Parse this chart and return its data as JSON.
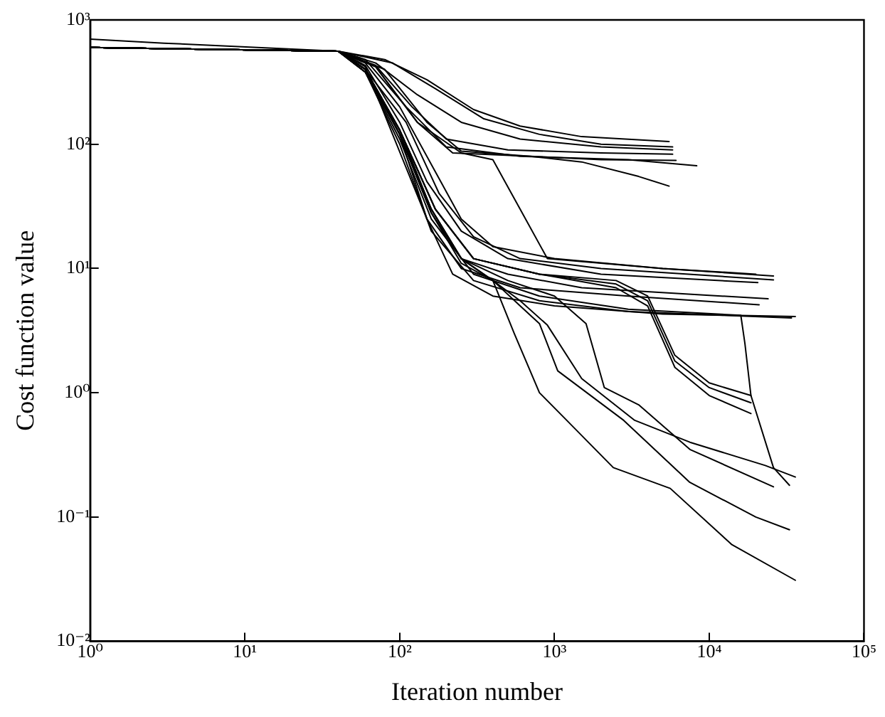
{
  "chart_data": {
    "type": "line",
    "xlabel": "Iteration number",
    "ylabel": "Cost function value",
    "log": "xy",
    "grid": false,
    "legend": false,
    "marker": "none",
    "line_style": "solid",
    "xlim": [
      1,
      100000
    ],
    "ylim": [
      0.01,
      1000
    ],
    "xticks": [
      {
        "value": 1,
        "label": "10⁰"
      },
      {
        "value": 10,
        "label": "10¹"
      },
      {
        "value": 100,
        "label": "10²"
      },
      {
        "value": 1000,
        "label": "10³"
      },
      {
        "value": 10000,
        "label": "10⁴"
      },
      {
        "value": 100000,
        "label": "10⁵"
      }
    ],
    "yticks": [
      {
        "value": 0.01,
        "label": "10⁻²"
      },
      {
        "value": 0.1,
        "label": "10⁻¹"
      },
      {
        "value": 1,
        "label": "10⁰"
      },
      {
        "value": 10,
        "label": "10¹"
      },
      {
        "value": 100,
        "label": "10²"
      },
      {
        "value": 1000,
        "label": "10³"
      }
    ],
    "series": [
      {
        "color": "#000000",
        "x": [
          1,
          40,
          80,
          150,
          300,
          600,
          1500,
          5500
        ],
        "values": [
          600,
          560,
          480,
          330,
          190,
          140,
          115,
          105
        ]
      },
      {
        "color": "#000000",
        "x": [
          1,
          40,
          90,
          170,
          350,
          800,
          2000,
          5800
        ],
        "values": [
          600,
          560,
          450,
          280,
          160,
          120,
          100,
          95
        ]
      },
      {
        "color": "#000000",
        "x": [
          1,
          40,
          70,
          130,
          250,
          600,
          2000,
          5800
        ],
        "values": [
          600,
          560,
          450,
          250,
          150,
          110,
          95,
          90
        ]
      },
      {
        "color": "#000000",
        "x": [
          1,
          40,
          70,
          120,
          200,
          500,
          2000,
          5800
        ],
        "values": [
          600,
          560,
          430,
          200,
          110,
          90,
          85,
          83
        ]
      },
      {
        "color": "#000000",
        "x": [
          1,
          40,
          60,
          110,
          200,
          600,
          3000,
          8300
        ],
        "values": [
          600,
          560,
          480,
          200,
          95,
          80,
          75,
          67
        ]
      },
      {
        "color": "#000000",
        "x": [
          1,
          40,
          70,
          130,
          220,
          700,
          2000,
          6100
        ],
        "values": [
          600,
          560,
          420,
          150,
          85,
          80,
          75,
          74
        ]
      },
      {
        "color": "#000000",
        "x": [
          1,
          3,
          40,
          80,
          150,
          250,
          700,
          1500,
          3500,
          5500
        ],
        "values": [
          700,
          650,
          560,
          400,
          150,
          88,
          80,
          72,
          55,
          46
        ]
      },
      {
        "color": "#000000",
        "x": [
          1,
          40,
          60,
          100,
          170,
          250,
          400,
          1000,
          5000,
          26000
        ],
        "values": [
          600,
          560,
          450,
          200,
          60,
          25,
          15,
          12,
          10,
          8.7
        ]
      },
      {
        "color": "#000000",
        "x": [
          1,
          40,
          60,
          110,
          180,
          300,
          600,
          2000,
          26000
        ],
        "values": [
          600,
          560,
          400,
          150,
          40,
          18,
          12,
          10,
          8.1
        ]
      },
      {
        "color": "#000000",
        "x": [
          1,
          40,
          60,
          100,
          150,
          250,
          500,
          2000,
          20600
        ],
        "values": [
          600,
          560,
          430,
          150,
          50,
          20,
          12,
          9,
          7.7
        ]
      },
      {
        "color": "#000000",
        "x": [
          1,
          40,
          60,
          100,
          160,
          250,
          500,
          1500,
          24000
        ],
        "values": [
          600,
          560,
          400,
          130,
          30,
          12,
          9,
          7,
          5.7
        ]
      },
      {
        "color": "#000000",
        "x": [
          1,
          40,
          60,
          90,
          150,
          250,
          600,
          3000,
          21000
        ],
        "values": [
          600,
          560,
          420,
          120,
          25,
          10,
          7,
          6,
          5.1
        ]
      },
      {
        "color": "#000000",
        "x": [
          1,
          40,
          60,
          100,
          150,
          220,
          400,
          1000,
          5000,
          36000
        ],
        "values": [
          600,
          560,
          380,
          120,
          25,
          9,
          6,
          5,
          4.3,
          4.1
        ]
      },
      {
        "color": "#000000",
        "x": [
          1,
          40,
          60,
          100,
          160,
          300,
          800,
          3000,
          34000
        ],
        "values": [
          600,
          560,
          380,
          100,
          20,
          8,
          5.5,
          4.5,
          4.0
        ]
      },
      {
        "color": "#000000",
        "x": [
          1,
          40,
          70,
          130,
          250,
          400,
          600,
          900,
          5000,
          20000
        ],
        "values": [
          600,
          560,
          420,
          150,
          85,
          75,
          30,
          12,
          10,
          9
        ]
      },
      {
        "color": "#000000",
        "x": [
          1,
          40,
          60,
          100,
          160,
          250,
          400,
          550,
          800,
          1200,
          2400,
          5600,
          14000,
          36000
        ],
        "values": [
          600,
          560,
          400,
          120,
          30,
          12,
          8,
          3,
          1,
          0.6,
          0.25,
          0.17,
          0.06,
          0.031
        ]
      },
      {
        "color": "#000000",
        "x": [
          1,
          40,
          60,
          100,
          160,
          250,
          400,
          600,
          800,
          1050,
          2800,
          7500,
          20000,
          33000
        ],
        "values": [
          600,
          560,
          400,
          120,
          30,
          12,
          8,
          5,
          3.6,
          1.5,
          0.6,
          0.19,
          0.1,
          0.079
        ]
      },
      {
        "color": "#000000",
        "x": [
          1,
          40,
          60,
          100,
          160,
          250,
          400,
          600,
          900,
          1500,
          3300,
          7500,
          23000,
          36000
        ],
        "values": [
          600,
          560,
          400,
          120,
          28,
          11,
          8,
          5.5,
          3.5,
          1.3,
          0.6,
          0.4,
          0.26,
          0.21
        ]
      },
      {
        "color": "#000000",
        "x": [
          1,
          40,
          60,
          100,
          160,
          250,
          500,
          1000,
          1600,
          2100,
          3500,
          7500,
          26000
        ],
        "values": [
          600,
          560,
          400,
          120,
          28,
          12,
          8,
          6,
          3.6,
          1.1,
          0.8,
          0.35,
          0.175
        ]
      },
      {
        "color": "#000000",
        "x": [
          1,
          40,
          60,
          100,
          170,
          300,
          800,
          2500,
          4000,
          6000,
          10000,
          18600
        ],
        "values": [
          600,
          560,
          400,
          130,
          30,
          12,
          9,
          8,
          6,
          2,
          1.2,
          0.95
        ]
      },
      {
        "color": "#000000",
        "x": [
          1,
          40,
          60,
          100,
          170,
          300,
          800,
          2500,
          4000,
          6000,
          10000,
          18600
        ],
        "values": [
          600,
          560,
          400,
          130,
          30,
          12,
          9,
          7.5,
          5.5,
          1.8,
          1.1,
          0.83
        ]
      },
      {
        "color": "#000000",
        "x": [
          1,
          40,
          60,
          100,
          170,
          300,
          800,
          2500,
          4000,
          6000,
          10000,
          18600
        ],
        "values": [
          600,
          560,
          400,
          130,
          30,
          12,
          9,
          7,
          5,
          1.6,
          0.95,
          0.68
        ]
      },
      {
        "color": "#000000",
        "x": [
          1,
          40,
          60,
          100,
          160,
          300,
          800,
          3000,
          16000,
          17000,
          18600,
          26000,
          33000
        ],
        "values": [
          600,
          560,
          380,
          110,
          25,
          9,
          6,
          4.7,
          4.2,
          2.5,
          0.95,
          0.25,
          0.18
        ]
      }
    ]
  }
}
